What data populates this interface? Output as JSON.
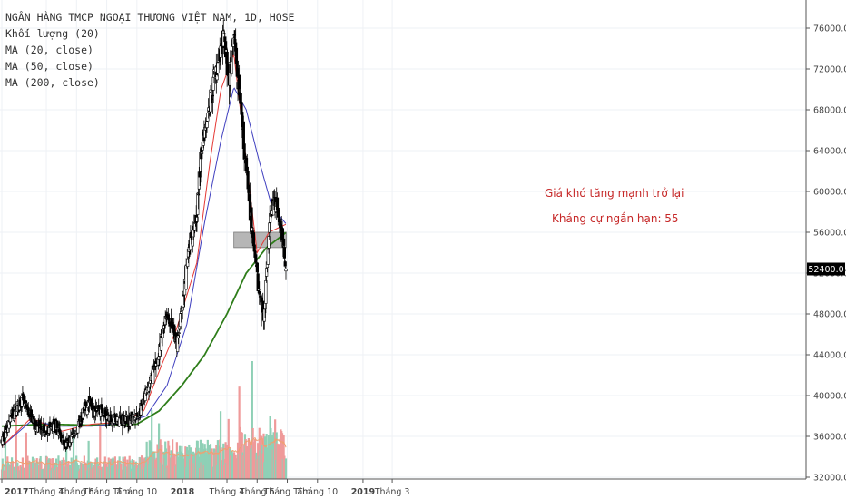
{
  "legend": {
    "symbol": "NGÂN HÀNG TMCP NGOẠI THƯƠNG VIỆT NAM, 1D, HOSE",
    "volume": "Khối lượng (20)",
    "ma20": "MA (20, close)",
    "ma50": "MA (50, close)",
    "ma200": "MA (200, close)"
  },
  "colors": {
    "up": "#ffffff",
    "down": "#000000",
    "ma20": "#e53935",
    "ma50": "#3f3fbf",
    "ma200": "#2e7d1a",
    "vol_up": "#8fd0b6",
    "vol_down": "#ef9a9a",
    "vol_ma": "#f0a070",
    "annotation": "#c62828",
    "zone": "#9e9e9e"
  },
  "chart_data": {
    "type": "candlestick",
    "title": "NGÂN HÀNG TMCP NGOẠI THƯƠNG VIỆT NAM, 1D, HOSE",
    "ylim": [
      32000,
      77000
    ],
    "y_ticks": [
      "76000.0",
      "72000.0",
      "68000.0",
      "64000.0",
      "60000.0",
      "56000.0",
      "52000.0",
      "48000.0",
      "44000.0",
      "40000.0",
      "36000.0",
      "32000.0"
    ],
    "x_ticks": [
      "2017",
      "Tháng 4",
      "Tháng 6",
      "Tháng Tám",
      "Tháng 10",
      "2018",
      "Tháng 4",
      "Tháng 6",
      "Tháng Tám",
      "Tháng 10",
      "2019",
      "Tháng 3"
    ],
    "current_price": 52400,
    "current_price_label": "52400.0",
    "price_path_date": [
      "2017-01-01",
      "2017-01-20",
      "2017-02-10",
      "2017-03-05",
      "2017-03-25",
      "2017-04-20",
      "2017-05-10",
      "2017-06-05",
      "2017-06-25",
      "2017-07-20",
      "2017-08-10",
      "2017-08-25",
      "2017-09-15",
      "2017-10-05",
      "2017-10-25",
      "2017-11-15",
      "2017-11-28",
      "2017-12-10",
      "2017-12-20",
      "2018-01-02",
      "2018-01-15",
      "2018-01-30",
      "2018-02-10",
      "2018-02-26",
      "2018-03-10",
      "2018-03-26",
      "2018-04-05",
      "2018-04-15",
      "2018-04-28",
      "2018-05-10",
      "2018-05-20",
      "2018-05-28",
      "2018-06-05",
      "2018-06-15",
      "2018-06-28",
      "2018-07-10",
      "2018-07-20",
      "2018-07-30"
    ],
    "price_path_close": [
      35500,
      38000,
      39500,
      37500,
      36500,
      37000,
      35000,
      37000,
      39500,
      38500,
      37500,
      37800,
      37500,
      38000,
      41000,
      44000,
      48000,
      47000,
      45000,
      49000,
      55000,
      58000,
      65000,
      69000,
      72000,
      75000,
      71000,
      75000,
      68000,
      62000,
      57000,
      53000,
      50000,
      48000,
      58000,
      59000,
      56000,
      52400
    ],
    "ma20": {
      "date": [
        "2017-01-01",
        "2017-03-01",
        "2017-05-01",
        "2017-07-01",
        "2017-09-01",
        "2017-10-15",
        "2017-11-20",
        "2017-12-20",
        "2018-01-30",
        "2018-02-26",
        "2018-03-20",
        "2018-04-15",
        "2018-05-10",
        "2018-06-01",
        "2018-06-25",
        "2018-07-30"
      ],
      "close": [
        35000,
        37800,
        36500,
        37200,
        37400,
        38500,
        43000,
        46500,
        53000,
        63000,
        70000,
        73500,
        63000,
        54000,
        56000,
        56800
      ]
    },
    "ma50": {
      "date": [
        "2017-01-01",
        "2017-03-01",
        "2017-05-01",
        "2017-07-01",
        "2017-09-01",
        "2017-10-20",
        "2017-12-01",
        "2018-01-10",
        "2018-02-15",
        "2018-03-20",
        "2018-04-15",
        "2018-05-10",
        "2018-06-05",
        "2018-07-01",
        "2018-07-30"
      ],
      "close": [
        35000,
        37500,
        37000,
        37000,
        37300,
        38000,
        41000,
        47000,
        57000,
        65000,
        70200,
        68000,
        63000,
        58500,
        56800
      ]
    },
    "ma200": {
      "date": [
        "2017-01-01",
        "2017-04-01",
        "2017-07-01",
        "2017-10-01",
        "2017-11-15",
        "2017-12-31",
        "2018-02-15",
        "2018-04-01",
        "2018-05-10",
        "2018-06-20",
        "2018-07-30"
      ],
      "close": [
        37000,
        37200,
        37100,
        37200,
        38500,
        41000,
        44000,
        48000,
        52000,
        54500,
        56000
      ]
    },
    "resistance_zone": {
      "from_date": "2018-04-15",
      "to_date": "2018-07-30",
      "low": 54500,
      "high": 56000
    },
    "annotations": [
      "Giá khó tăng mạnh trở lại",
      "Kháng cự ngắn hạn: 55"
    ]
  }
}
